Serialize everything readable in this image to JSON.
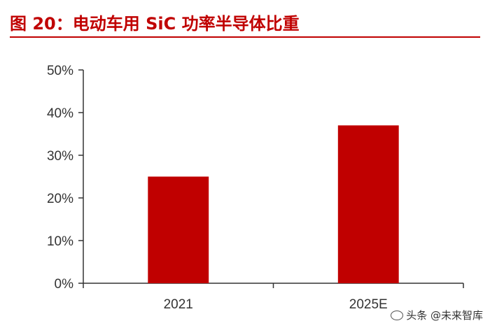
{
  "chart_data": {
    "type": "bar",
    "title": "图 20：电动车用 SiC 功率半导体比重",
    "categories": [
      "2021",
      "2025E"
    ],
    "values": [
      25,
      37
    ],
    "ylim": [
      0,
      50
    ],
    "yticks": [
      0,
      10,
      20,
      30,
      40,
      50
    ],
    "ytick_format": "percent",
    "xlabel": "",
    "ylabel": "",
    "grid": false,
    "legend": "none",
    "bar_color": "#c00000",
    "title_color": "#c00000"
  },
  "watermark": {
    "text": "头条 @未来智库",
    "icon": "wechat-icon"
  }
}
